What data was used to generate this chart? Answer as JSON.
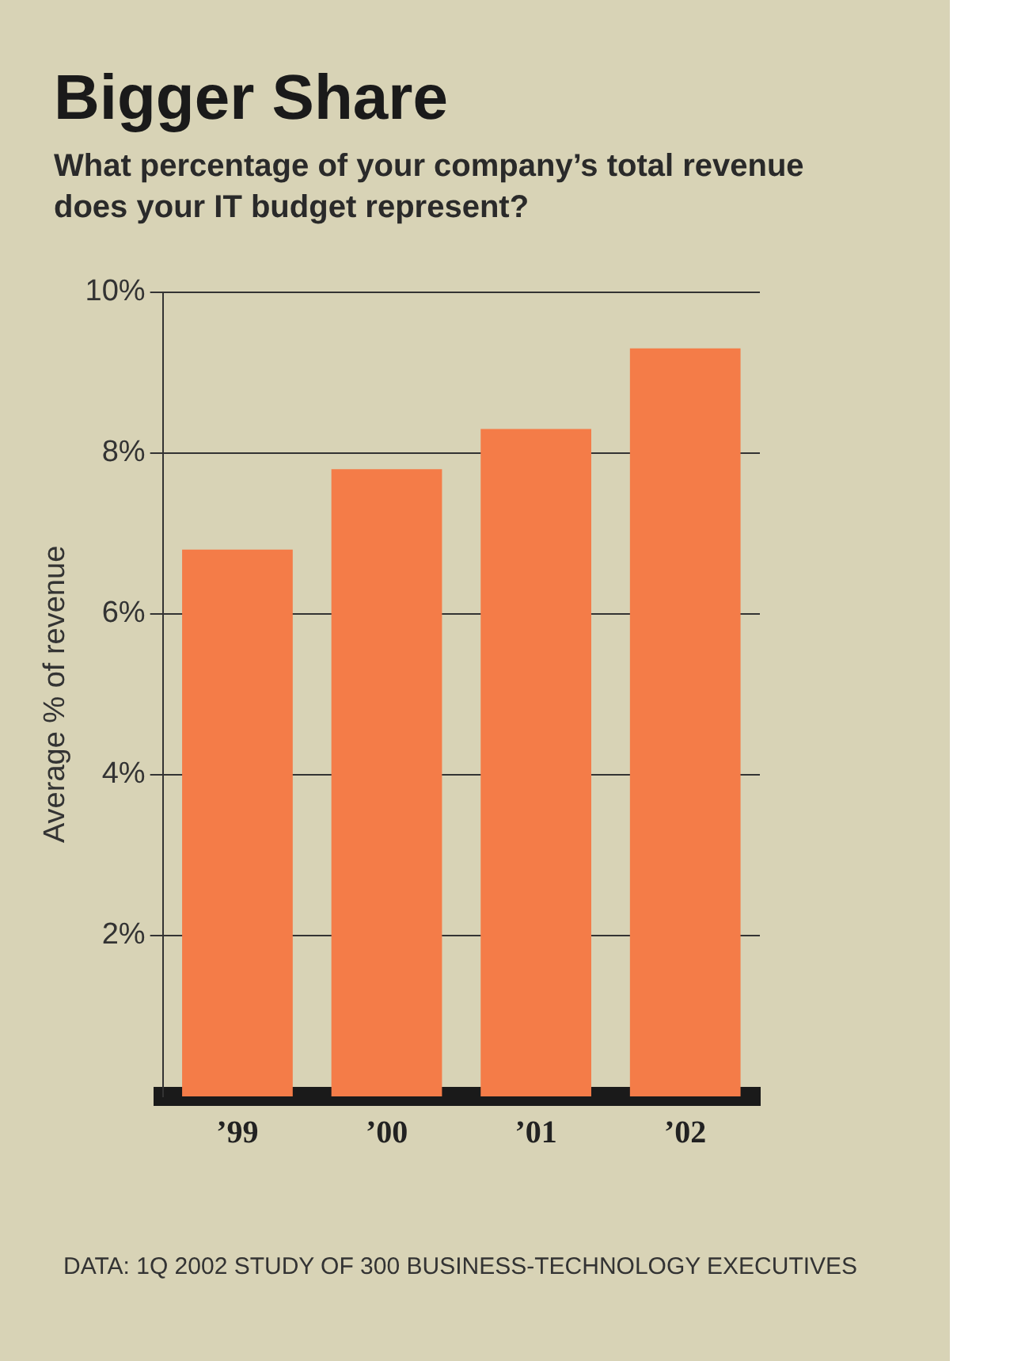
{
  "chart_data": {
    "type": "bar",
    "title": "Bigger Share",
    "subtitle": "What percentage of your company’s total revenue does your IT budget represent?",
    "ylabel": "Average % of revenue",
    "categories": [
      "’99",
      "’00",
      "’01",
      "’02"
    ],
    "values": [
      6.8,
      7.8,
      8.3,
      9.3
    ],
    "color": "#f47c48",
    "ylim": [
      0,
      10
    ],
    "yticks": [
      {
        "value": 2,
        "label": "2%"
      },
      {
        "value": 4,
        "label": "4%"
      },
      {
        "value": 6,
        "label": "6%"
      },
      {
        "value": 8,
        "label": "8%"
      },
      {
        "value": 10,
        "label": "10%"
      }
    ],
    "grid": "y",
    "legend": false,
    "annotations": [
      "DATA: 1Q 2002 STUDY OF 300 BUSINESS-TECHNOLOGY EXECUTIVES"
    ]
  }
}
